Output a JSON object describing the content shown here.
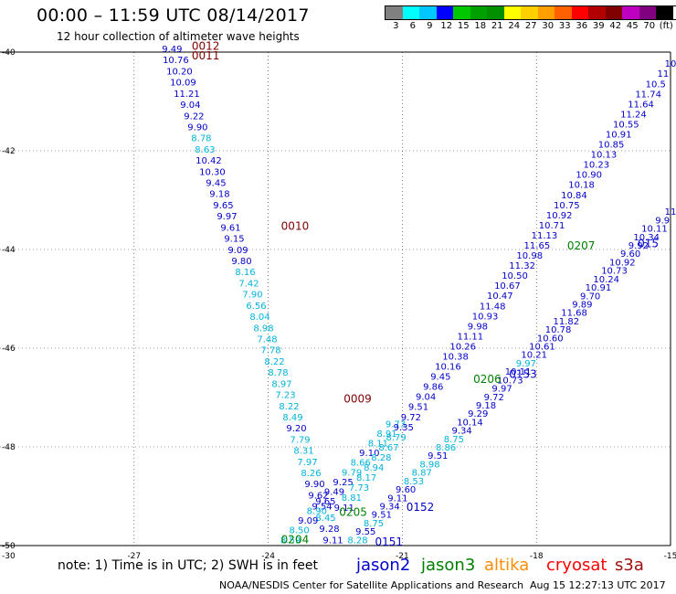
{
  "header": {
    "title": "00:00 – 11:59 UTC 08/14/2017",
    "subtitle": "12 hour collection of altimeter wave heights"
  },
  "legend": {
    "bins": [
      {
        "label": "3",
        "color": "#808080"
      },
      {
        "label": "6",
        "color": "#00ffff"
      },
      {
        "label": "9",
        "color": "#00c8ff"
      },
      {
        "label": "12",
        "color": "#0000ff"
      },
      {
        "label": "15",
        "color": "#00c800"
      },
      {
        "label": "18",
        "color": "#00a000"
      },
      {
        "label": "21",
        "color": "#009000"
      },
      {
        "label": "24",
        "color": "#ffff00"
      },
      {
        "label": "27",
        "color": "#ffd000"
      },
      {
        "label": "30",
        "color": "#ffa000"
      },
      {
        "label": "33",
        "color": "#ff6000"
      },
      {
        "label": "36",
        "color": "#ff0000"
      },
      {
        "label": "39",
        "color": "#b00000"
      },
      {
        "label": "42",
        "color": "#800000"
      },
      {
        "label": "45",
        "color": "#c000c0"
      },
      {
        "label": "70",
        "color": "#800080"
      },
      {
        "label": "(ft)",
        "color": "#000000"
      }
    ]
  },
  "map": {
    "lon_range": [
      -30,
      -15
    ],
    "lat_range": [
      -50,
      -40
    ],
    "lon_ticks": [
      "-27",
      "-24",
      "-21",
      "-18",
      "-15"
    ],
    "lat_ticks": [
      "-40",
      "-42",
      "-44",
      "-46",
      "-48",
      "-50"
    ],
    "corner_label": "-30",
    "colors": {
      "jason2": "#0000cc",
      "cyan": "#00b4dc",
      "jason3": "#008000",
      "altika": "#ff8c00",
      "cryosat": "#ff0000",
      "s3a": "#a01010",
      "darkred": "#800000"
    },
    "passes": [
      {
        "name": "track-a",
        "start": [
          -26.15,
          -40.0
        ],
        "end": [
          -22.55,
          -49.95
        ],
        "values": [
          "9.49",
          "10.76",
          "10.20",
          "10.09",
          "11.21",
          "9.04",
          "9.22",
          "9.90",
          "8.78",
          "8.63",
          "10.42",
          "10.30",
          "9.45",
          "9.18",
          "9.65",
          "9.97",
          "9.61",
          "9.15",
          "9.09",
          "9.80",
          "8.16",
          "7.42",
          "7.90",
          "6.56",
          "8.04",
          "8.98",
          "7.48",
          "7.78",
          "8.22",
          "8.78",
          "8.97",
          "7.23",
          "8.22",
          "8.49",
          "9.20",
          "7.79",
          "8.31",
          "7.97",
          "8.26",
          "9.90",
          "9.62",
          "9.54",
          "8.45",
          "9.28",
          "9.11"
        ],
        "colors": [
          "jason2",
          "jason2",
          "jason2",
          "jason2",
          "jason2",
          "jason2",
          "jason2",
          "jason2",
          "cyan",
          "cyan",
          "jason2",
          "jason2",
          "jason2",
          "jason2",
          "jason2",
          "jason2",
          "jason2",
          "jason2",
          "jason2",
          "jason2",
          "cyan",
          "cyan",
          "cyan",
          "cyan",
          "cyan",
          "cyan",
          "cyan",
          "cyan",
          "cyan",
          "cyan",
          "cyan",
          "cyan",
          "cyan",
          "cyan",
          "jason2",
          "cyan",
          "cyan",
          "cyan",
          "cyan",
          "jason2",
          "jason2",
          "jason2",
          "cyan",
          "jason2",
          "jason2"
        ]
      },
      {
        "name": "track-b",
        "start": [
          -21.15,
          -47.6
        ],
        "end": [
          -23.5,
          -49.95
        ],
        "values": [
          "9.73",
          "8.91",
          "8.11",
          "9.10",
          "8.66",
          "9.79",
          "9.25",
          "9.49",
          "9.65",
          "8.90",
          "9.09",
          "8.50",
          "8.59"
        ],
        "colors": [
          "cyan",
          "cyan",
          "cyan",
          "jason2",
          "cyan",
          "cyan",
          "jason2",
          "jason2",
          "jason2",
          "cyan",
          "jason2",
          "cyan",
          "cyan"
        ]
      },
      {
        "name": "track-c",
        "start": [
          -15.0,
          -40.3
        ],
        "end": [
          -22.3,
          -49.3
        ],
        "values": [
          "10",
          "11",
          "10.5",
          "11.74",
          "11.64",
          "11.24",
          "10.55",
          "10.91",
          "10.85",
          "10.13",
          "10.23",
          "10.90",
          "10.18",
          "10.84",
          "10.75",
          "10.92",
          "10.71",
          "11.13",
          "11.65",
          "10.98",
          "11.32",
          "10.50",
          "10.67",
          "10.47",
          "11.48",
          "10.93",
          "9.98",
          "11.11",
          "10.26",
          "10.38",
          "10.16",
          "9.45",
          "9.86",
          "9.04",
          "9.51",
          "9.72",
          "9.35",
          "8.79",
          "8.67",
          "8.28",
          "8.94",
          "8.17",
          "7.73",
          "8.81",
          "9.11"
        ],
        "colors": [
          "jason2",
          "jason2",
          "jason2",
          "jason2",
          "jason2",
          "jason2",
          "jason2",
          "jason2",
          "jason2",
          "jason2",
          "jason2",
          "jason2",
          "jason2",
          "jason2",
          "jason2",
          "jason2",
          "jason2",
          "jason2",
          "jason2",
          "jason2",
          "jason2",
          "jason2",
          "jason2",
          "jason2",
          "jason2",
          "jason2",
          "jason2",
          "jason2",
          "jason2",
          "jason2",
          "jason2",
          "jason2",
          "jason2",
          "jason2",
          "jason2",
          "jason2",
          "jason2",
          "cyan",
          "cyan",
          "cyan",
          "cyan",
          "cyan",
          "cyan",
          "cyan",
          "jason2"
        ]
      },
      {
        "name": "track-d",
        "start": [
          -15.0,
          -43.3
        ],
        "end": [
          -22.0,
          -49.95
        ],
        "values": [
          "11",
          "9.9",
          "10.11",
          "10.34",
          "9.92",
          "9.60",
          "10.92",
          "10.73",
          "10.24",
          "10.91",
          "9.70",
          "9.89",
          "11.68",
          "11.82",
          "10.78",
          "10.60",
          "10.61",
          "10.21",
          "9.97",
          "10.11",
          "10.73",
          "9.97",
          "9.72",
          "9.18",
          "9.29",
          "10.14",
          "9.34",
          "8.75",
          "8.86",
          "9.51",
          "8.98",
          "8.87",
          "8.53",
          "9.60",
          "9.11",
          "9.34",
          "9.51",
          "8.75",
          "9.55",
          "8.28"
        ],
        "colors": [
          "jason2",
          "jason2",
          "jason2",
          "jason2",
          "jason2",
          "jason2",
          "jason2",
          "jason2",
          "jason2",
          "jason2",
          "jason2",
          "jason2",
          "jason2",
          "jason2",
          "jason2",
          "jason2",
          "jason2",
          "jason2",
          "cyan",
          "jason2",
          "jason2",
          "jason2",
          "jason2",
          "jason2",
          "jason2",
          "jason2",
          "jason2",
          "cyan",
          "cyan",
          "jason2",
          "cyan",
          "cyan",
          "cyan",
          "jason2",
          "jason2",
          "jason2",
          "jason2",
          "cyan",
          "jason2",
          "cyan"
        ]
      }
    ],
    "time_labels": [
      {
        "text": "0012",
        "lon": -25.4,
        "lat": -39.95,
        "color": "darkred"
      },
      {
        "text": "0011",
        "lon": -25.4,
        "lat": -40.15,
        "color": "darkred"
      },
      {
        "text": "0010",
        "lon": -23.4,
        "lat": -43.6,
        "color": "darkred"
      },
      {
        "text": "0009",
        "lon": -22.0,
        "lat": -47.1,
        "color": "darkred"
      },
      {
        "text": "0207",
        "lon": -17.0,
        "lat": -44.0,
        "color": "jason3"
      },
      {
        "text": "0206",
        "lon": -19.1,
        "lat": -46.7,
        "color": "jason3"
      },
      {
        "text": "0205",
        "lon": -22.1,
        "lat": -49.4,
        "color": "jason3"
      },
      {
        "text": "0204",
        "lon": -23.4,
        "lat": -49.95,
        "color": "jason3"
      },
      {
        "text": "0153",
        "lon": -18.3,
        "lat": -46.6,
        "color": "jason2"
      },
      {
        "text": "0152",
        "lon": -20.6,
        "lat": -49.3,
        "color": "jason2"
      },
      {
        "text": "0151",
        "lon": -21.3,
        "lat": -50.0,
        "color": "jason2"
      },
      {
        "text": "015",
        "lon": -15.5,
        "lat": -43.95,
        "color": "jason2"
      }
    ]
  },
  "note": "note: 1) Time is in UTC; 2) SWH is in feet",
  "satellites": [
    {
      "name": "jason2",
      "color": "#0000cc"
    },
    {
      "name": "jason3",
      "color": "#008000"
    },
    {
      "name": "altika",
      "color": "#ff8c00"
    },
    {
      "name": "cryosat",
      "color": "#ff0000"
    },
    {
      "name": "s3a",
      "color": "#a01010"
    }
  ],
  "footer": {
    "credit": "NOAA/NESDIS Center for Satellite Applications and Research",
    "timestamp": "Aug 15 12:27:13 UTC 2017"
  }
}
